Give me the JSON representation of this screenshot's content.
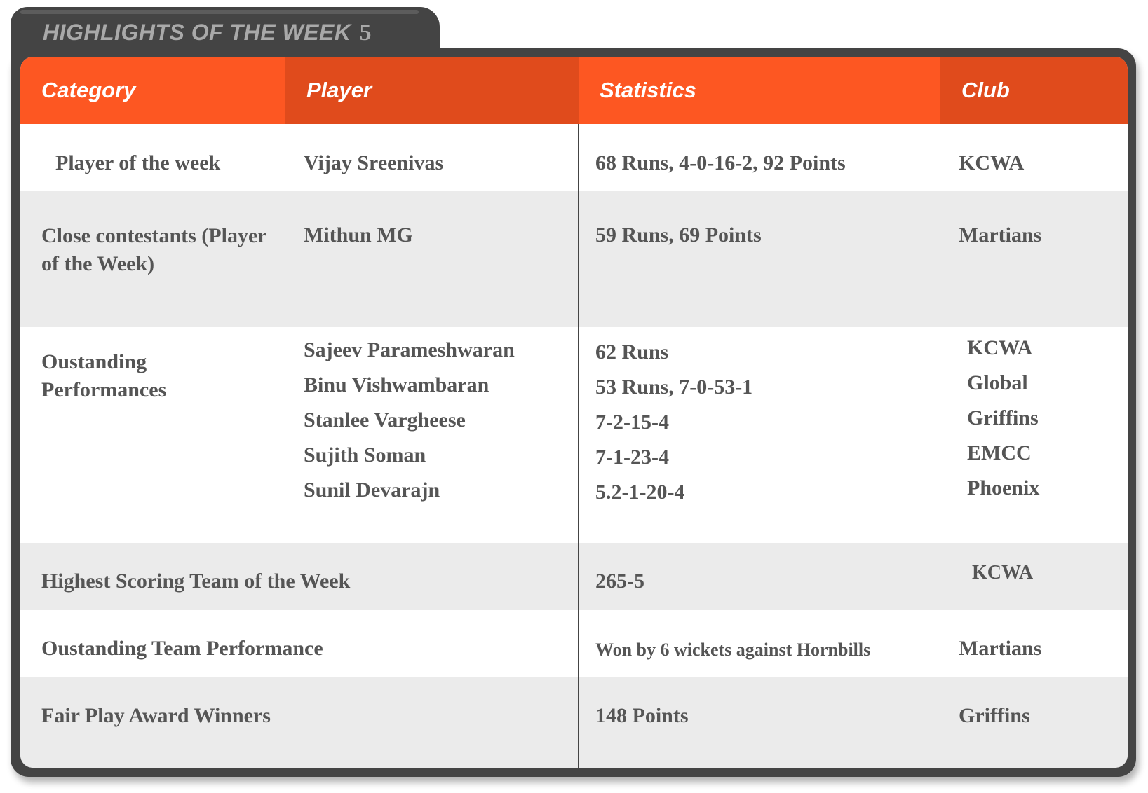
{
  "title": "HIGHLIGHTS OF THE WEEK",
  "week_number": "5",
  "colors": {
    "header": "#fd5722",
    "header_alt": "#e04b1c",
    "frame": "#444444",
    "row_alt": "#ebebeb",
    "text": "#555555"
  },
  "columns": [
    "Category",
    "Player",
    "Statistics",
    "Club"
  ],
  "rows": [
    {
      "category": "Player of the week",
      "players": [
        "Vijay Sreenivas"
      ],
      "stats": [
        "68 Runs, 4-0-16-2, 92 Points"
      ],
      "clubs": [
        "KCWA"
      ]
    },
    {
      "category": "Close contestants (Player of the Week)",
      "players": [
        "Mithun MG"
      ],
      "stats": [
        "59 Runs, 69 Points"
      ],
      "clubs": [
        "Martians"
      ]
    },
    {
      "category": "Oustanding Performances",
      "players": [
        "Sajeev Parameshwaran",
        "Binu Vishwambaran",
        "Stanlee Vargheese",
        "Sujith Soman",
        "Sunil Devarajn"
      ],
      "stats": [
        "62 Runs",
        "53 Runs, 7-0-53-1",
        "7-2-15-4",
        "7-1-23-4",
        "5.2-1-20-4"
      ],
      "clubs": [
        "KCWA",
        "Global",
        "Griffins",
        "EMCC",
        "Phoenix"
      ]
    },
    {
      "category": "Highest Scoring Team of the Week",
      "stats": [
        "265-5"
      ],
      "clubs": [
        "KCWA"
      ]
    },
    {
      "category": "Oustanding Team Performance",
      "stats": [
        "Won by 6 wickets against Hornbills"
      ],
      "clubs": [
        "Martians"
      ]
    },
    {
      "category": "Fair Play Award Winners",
      "stats": [
        "148 Points"
      ],
      "clubs": [
        "Griffins"
      ]
    }
  ]
}
